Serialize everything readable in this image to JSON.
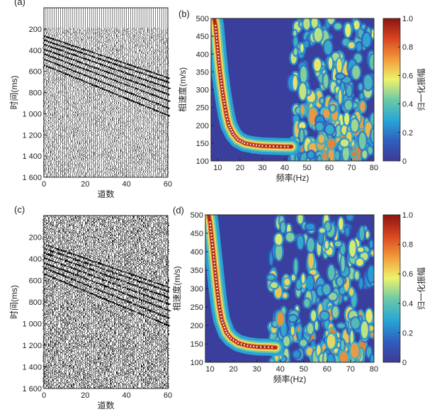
{
  "chart_data": [
    {
      "panel": "(a)",
      "type": "heatmap",
      "kind": "seismic-wiggle",
      "xlabel": "道数",
      "ylabel": "时间(ms)",
      "xlim": [
        0,
        60
      ],
      "ylim_ms": [
        0,
        1600
      ],
      "x_ticks": [
        "0",
        "20",
        "40",
        "60"
      ],
      "y_ticks": [
        "200",
        "400",
        "600",
        "800",
        "1 000",
        "1 200",
        "1 400",
        "1 600"
      ],
      "noise_level": "low",
      "events": [
        {
          "t0": 270,
          "t60": 665
        },
        {
          "t0": 310,
          "t60": 705
        },
        {
          "t0": 350,
          "t60": 760
        },
        {
          "t0": 395,
          "t60": 820
        },
        {
          "t0": 440,
          "t60": 880
        },
        {
          "t0": 490,
          "t60": 950
        },
        {
          "t0": 545,
          "t60": 1020
        }
      ]
    },
    {
      "panel": "(b)",
      "type": "heatmap",
      "kind": "dispersion-image",
      "xlabel": "频率(Hz)",
      "ylabel": "相速度(m/s)",
      "xlim": [
        7,
        80
      ],
      "ylim": [
        100,
        500
      ],
      "x_ticks": [
        "10",
        "20",
        "30",
        "40",
        "50",
        "60",
        "70",
        "80"
      ],
      "y_ticks": [
        "100",
        "150",
        "200",
        "250",
        "300",
        "350",
        "400",
        "450",
        "500"
      ],
      "colorbar_label": "归一化振幅",
      "colorbar_ticks": [
        "0",
        "0.2",
        "0.4",
        "0.6",
        "0.8",
        "1.0"
      ],
      "colormap": [
        "#3e3b94",
        "#2f5fc0",
        "#28a6d6",
        "#6cc9a8",
        "#eef36b",
        "#f29a3c",
        "#d9451f",
        "#8b1413"
      ],
      "background_color": "#3a3f9d",
      "cutoff_hz": 43,
      "curve_points": [
        [
          9,
          480
        ],
        [
          10,
          410
        ],
        [
          11,
          350
        ],
        [
          12,
          300
        ],
        [
          13,
          260
        ],
        [
          14,
          225
        ],
        [
          15,
          200
        ],
        [
          17,
          175
        ],
        [
          19,
          160
        ],
        [
          22,
          150
        ],
        [
          26,
          145
        ],
        [
          30,
          142
        ],
        [
          35,
          141
        ],
        [
          40,
          140
        ],
        [
          43,
          140
        ]
      ]
    },
    {
      "panel": "(c)",
      "type": "heatmap",
      "kind": "seismic-wiggle",
      "xlabel": "道数",
      "ylabel": "时间(ms)",
      "xlim": [
        0,
        60
      ],
      "ylim_ms": [
        0,
        1600
      ],
      "x_ticks": [
        "0",
        "20",
        "40",
        "60"
      ],
      "y_ticks": [
        "200",
        "400",
        "600",
        "800",
        "1 000",
        "1 200",
        "1 400",
        "1 600"
      ],
      "noise_level": "high",
      "events": [
        {
          "t0": 270,
          "t60": 665
        },
        {
          "t0": 310,
          "t60": 705
        },
        {
          "t0": 350,
          "t60": 760
        },
        {
          "t0": 395,
          "t60": 820
        },
        {
          "t0": 440,
          "t60": 880
        },
        {
          "t0": 490,
          "t60": 950
        },
        {
          "t0": 545,
          "t60": 1020
        }
      ]
    },
    {
      "panel": "(d)",
      "type": "heatmap",
      "kind": "dispersion-image",
      "xlabel": "频率(Hz)",
      "ylabel": "相速度(m/s)",
      "xlim": [
        8,
        80
      ],
      "ylim": [
        100,
        500
      ],
      "x_ticks": [
        "10",
        "20",
        "30",
        "40",
        "50",
        "60",
        "70",
        "80"
      ],
      "y_ticks": [
        "100",
        "150",
        "200",
        "250",
        "300",
        "350",
        "400",
        "450",
        "500"
      ],
      "colorbar_label": "归一化振幅",
      "colorbar_ticks": [
        "0",
        "0.2",
        "0.4",
        "0.6",
        "0.8",
        "1.0"
      ],
      "colormap": [
        "#3e3b94",
        "#2f5fc0",
        "#28a6d6",
        "#6cc9a8",
        "#eef36b",
        "#f29a3c",
        "#d9451f",
        "#8b1413"
      ],
      "background_color": "#3a3f9d",
      "cutoff_hz": 36,
      "curve_points": [
        [
          10,
          480
        ],
        [
          11,
          420
        ],
        [
          12,
          360
        ],
        [
          13,
          300
        ],
        [
          14,
          250
        ],
        [
          15,
          215
        ],
        [
          17,
          180
        ],
        [
          19,
          165
        ],
        [
          22,
          152
        ],
        [
          26,
          145
        ],
        [
          30,
          142
        ],
        [
          35,
          141
        ],
        [
          38,
          140
        ]
      ]
    }
  ]
}
